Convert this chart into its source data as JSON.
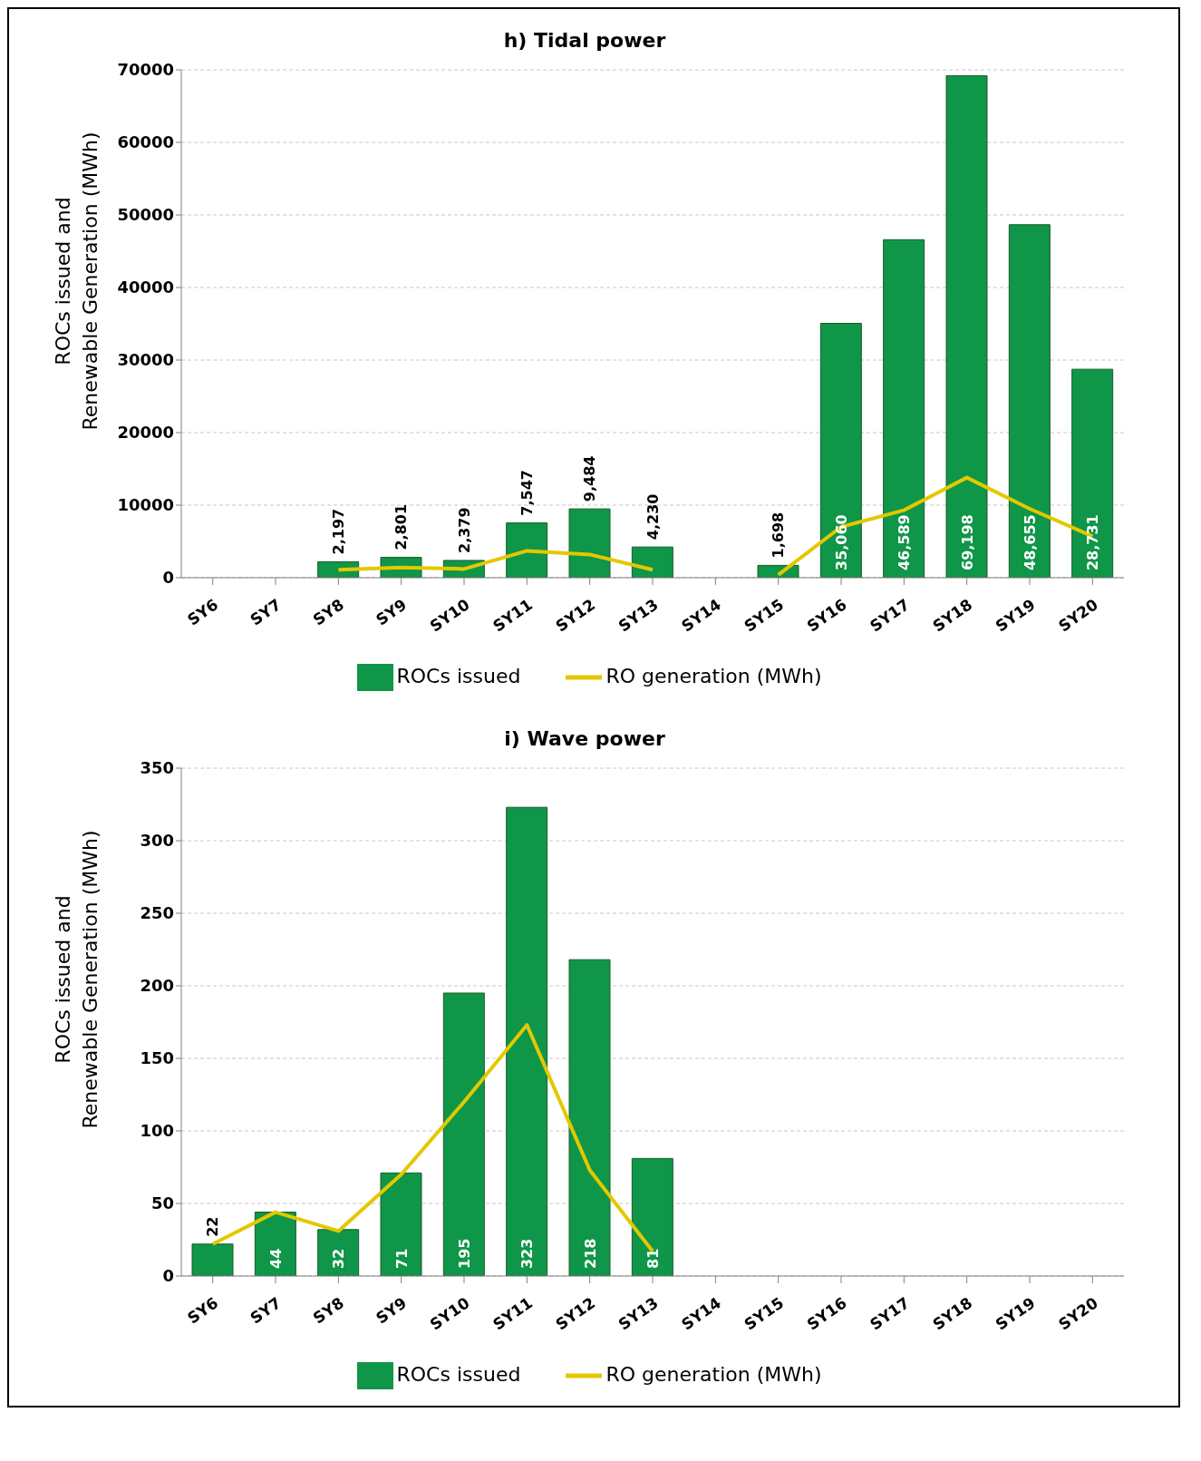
{
  "chart_data": [
    {
      "type": "bar",
      "title": "h) Tidal power",
      "ylabel": "ROCs issued and\nRenewable Generation (MWh)",
      "categories": [
        "SY6",
        "SY7",
        "SY8",
        "SY9",
        "SY10",
        "SY11",
        "SY12",
        "SY13",
        "SY14",
        "SY15",
        "SY16",
        "SY17",
        "SY18",
        "SY19",
        "SY20"
      ],
      "series": [
        {
          "name": "ROCs issued",
          "color": "#0f9648",
          "values": [
            null,
            null,
            2197,
            2801,
            2379,
            7547,
            9484,
            4230,
            null,
            1698,
            35060,
            46589,
            69198,
            48655,
            28731
          ],
          "value_labels": [
            null,
            null,
            "2,197",
            "2,801",
            "2,379",
            "7,547",
            "9,484",
            "4,230",
            null,
            "1,698",
            "35,060",
            "46,589",
            "69,198",
            "48,655",
            "28,731"
          ]
        },
        {
          "name": "RO generation (MWh)",
          "type": "line",
          "color": "#e3c800",
          "values": [
            null,
            null,
            1100,
            1400,
            1200,
            3700,
            3200,
            1100,
            null,
            400,
            7000,
            9300,
            13800,
            9500,
            5700
          ]
        }
      ],
      "ylim": [
        0,
        70000
      ],
      "yticks": [
        0,
        10000,
        20000,
        30000,
        40000,
        50000,
        60000,
        70000
      ],
      "grid": "y",
      "legend": "bottom",
      "marker": "none"
    },
    {
      "type": "bar",
      "title": "i) Wave power",
      "ylabel": "ROCs issued and\nRenewable Generation (MWh)",
      "categories": [
        "SY6",
        "SY7",
        "SY8",
        "SY9",
        "SY10",
        "SY11",
        "SY12",
        "SY13",
        "SY14",
        "SY15",
        "SY16",
        "SY17",
        "SY18",
        "SY19",
        "SY20"
      ],
      "series": [
        {
          "name": "ROCs issued",
          "color": "#0f9648",
          "values": [
            22,
            44,
            32,
            71,
            195,
            323,
            218,
            81,
            null,
            null,
            null,
            null,
            null,
            null,
            null
          ],
          "value_labels": [
            "22",
            "44",
            "32",
            "71",
            "195",
            "323",
            "218",
            "81",
            null,
            null,
            null,
            null,
            null,
            null,
            null
          ]
        },
        {
          "name": "RO generation (MWh)",
          "type": "line",
          "color": "#e3c800",
          "values": [
            22,
            44,
            31,
            70,
            120,
            173,
            73,
            17,
            null,
            null,
            null,
            null,
            null,
            null,
            null
          ]
        }
      ],
      "ylim": [
        0,
        350
      ],
      "yticks": [
        0,
        50,
        100,
        150,
        200,
        250,
        300,
        350
      ],
      "grid": "y",
      "legend": "bottom",
      "marker": "none"
    }
  ]
}
